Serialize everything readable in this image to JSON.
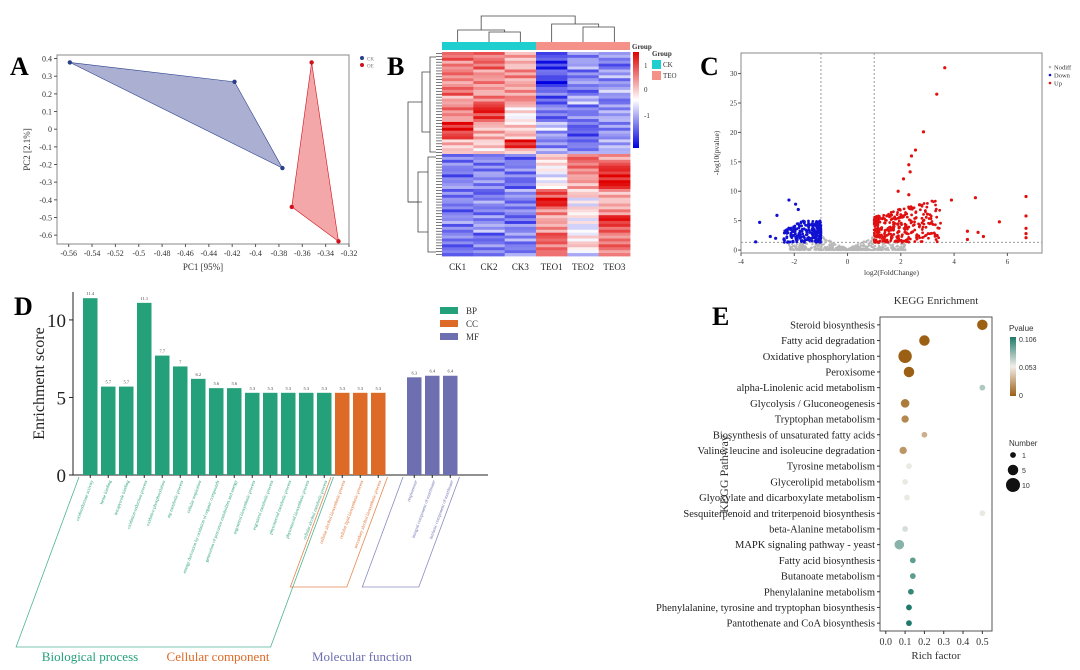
{
  "panels": {
    "A": "A",
    "B": "B",
    "C": "C",
    "D": "D",
    "E": "E"
  },
  "chart_data": [
    {
      "id": "A",
      "type": "scatter",
      "title": "",
      "xlabel": "PC1 [95%]",
      "ylabel": "PC2 [2.1%]",
      "xlim": [
        -0.57,
        -0.32
      ],
      "ylim": [
        -0.65,
        0.42
      ],
      "xticks": [
        -0.56,
        -0.54,
        -0.52,
        -0.5,
        -0.48,
        -0.46,
        -0.44,
        -0.42,
        -0.4,
        -0.38,
        -0.36,
        -0.34,
        -0.32
      ],
      "yticks": [
        0.4,
        0.3,
        0.2,
        0.1,
        0.0,
        -0.1,
        -0.2,
        -0.3,
        -0.4,
        -0.5,
        -0.6
      ],
      "legend": [
        {
          "name": "CK",
          "color": "#2b3f8c"
        },
        {
          "name": "OE",
          "color": "#d0101a"
        }
      ],
      "legend_position": "top-right",
      "series": [
        {
          "name": "CK",
          "color": "#2b3f8c",
          "fill": "#8f96c4",
          "points": [
            [
              -0.559,
              0.378
            ],
            [
              -0.418,
              0.268
            ],
            [
              -0.377,
              -0.22
            ]
          ]
        },
        {
          "name": "OE",
          "color": "#d0101a",
          "fill": "#f08a8c",
          "points": [
            [
              -0.352,
              0.378
            ],
            [
              -0.369,
              -0.44
            ],
            [
              -0.329,
              -0.635
            ]
          ]
        }
      ]
    },
    {
      "id": "B",
      "type": "heatmap",
      "columns": [
        "CK1",
        "CK2",
        "CK3",
        "TEO1",
        "TEO2",
        "TEO3"
      ],
      "groups": [
        {
          "name": "CK",
          "color": "#1fcfcf"
        },
        {
          "name": "TEO",
          "color": "#f4928a"
        }
      ],
      "annotation_title": "Group",
      "legend_title": "Group",
      "colorbar": {
        "min": -1.5,
        "max": 1.5,
        "ticks": [
          "1",
          "0",
          "-1"
        ],
        "low": "#0000e0",
        "mid": "#ffffff",
        "high": "#e00000"
      },
      "row_pattern": [
        [
          0.9,
          0.8,
          0.5,
          -1.0,
          -0.7,
          -0.6
        ],
        [
          0.7,
          0.9,
          0.4,
          -1.2,
          -0.5,
          -0.9
        ],
        [
          0.8,
          0.6,
          0.7,
          -0.9,
          -0.8,
          -0.5
        ],
        [
          0.6,
          0.7,
          0.5,
          -1.3,
          -0.6,
          -0.7
        ],
        [
          0.9,
          0.5,
          0.6,
          -0.8,
          -0.9,
          -0.4
        ],
        [
          0.5,
          0.8,
          0.7,
          -1.0,
          -0.4,
          -0.8
        ],
        [
          0.8,
          1.3,
          0.2,
          -0.7,
          -0.8,
          -0.6
        ],
        [
          0.6,
          1.1,
          0.0,
          -0.9,
          -0.7,
          -0.5
        ],
        [
          1.3,
          0.4,
          0.3,
          -0.3,
          -0.9,
          -0.7
        ],
        [
          1.1,
          0.5,
          0.4,
          -0.6,
          -1.0,
          -0.6
        ],
        [
          0.4,
          0.3,
          1.3,
          -0.7,
          -0.8,
          -0.5
        ],
        [
          0.3,
          0.2,
          0.4,
          -0.5,
          -0.7,
          -0.4
        ],
        [
          -0.8,
          -0.7,
          -0.9,
          0.3,
          0.9,
          0.6
        ],
        [
          -0.7,
          -0.8,
          -0.7,
          0.1,
          0.8,
          1.2
        ],
        [
          -0.9,
          -0.6,
          -0.8,
          -0.2,
          0.6,
          1.3
        ],
        [
          -0.6,
          -0.7,
          -0.9,
          0.0,
          0.5,
          1.4
        ],
        [
          -0.8,
          -0.9,
          -0.6,
          1.0,
          0.3,
          0.5
        ],
        [
          -0.7,
          -0.6,
          -0.8,
          1.4,
          -0.1,
          0.4
        ],
        [
          -0.9,
          -0.8,
          -0.7,
          0.7,
          0.2,
          0.6
        ],
        [
          -0.6,
          -0.7,
          -0.9,
          0.5,
          0.0,
          1.3
        ],
        [
          -0.8,
          -0.5,
          -0.7,
          0.6,
          -0.2,
          1.0
        ],
        [
          -0.7,
          -0.9,
          -0.6,
          1.0,
          0.1,
          0.7
        ],
        [
          -0.9,
          -0.7,
          -0.8,
          0.8,
          0.3,
          0.9
        ],
        [
          -0.8,
          -0.8,
          -0.7,
          0.9,
          -0.3,
          0.6
        ]
      ]
    },
    {
      "id": "C",
      "type": "scatter",
      "title": "",
      "xlabel": "log2(FoldChange)",
      "ylabel": "-log10(pvalue)",
      "xlim": [
        -4,
        7.3
      ],
      "ylim": [
        -0.5,
        33.5
      ],
      "xticks": [
        -4,
        -2,
        0,
        2,
        4,
        6
      ],
      "yticks": [
        0,
        5,
        10,
        15,
        20,
        25,
        30
      ],
      "thresholds": {
        "fc": [
          -1,
          1
        ],
        "p": 1.3
      },
      "legend": [
        {
          "name": "Nodiff",
          "color": "#b8b8b8"
        },
        {
          "name": "Down",
          "color": "#1010d0"
        },
        {
          "name": "Up",
          "color": "#e01010"
        }
      ],
      "legend_position": "top-right",
      "highlight_points": {
        "Up": [
          [
            3.65,
            31
          ],
          [
            3.35,
            26.5
          ],
          [
            2.85,
            20.1
          ],
          [
            2.55,
            17
          ],
          [
            2.4,
            16
          ],
          [
            2.3,
            14.5
          ],
          [
            2.35,
            13.3
          ],
          [
            2.1,
            12.1
          ],
          [
            1.9,
            10
          ],
          [
            2.3,
            9.4
          ],
          [
            6.7,
            9.1
          ],
          [
            4.8,
            8.9
          ],
          [
            3.9,
            8.5
          ],
          [
            2.7,
            7.7
          ],
          [
            3.0,
            6.1
          ],
          [
            6.7,
            5.8
          ],
          [
            5.7,
            4.8
          ],
          [
            6.7,
            3.7
          ],
          [
            4.5,
            3.2
          ],
          [
            4.9,
            3.0
          ],
          [
            5.1,
            2.3
          ],
          [
            6.7,
            2.8
          ],
          [
            6.7,
            2.1
          ],
          [
            4.5,
            1.8
          ]
        ],
        "Down": [
          [
            -2.2,
            8.5
          ],
          [
            -1.95,
            7.8
          ],
          [
            -1.85,
            6.9
          ],
          [
            -2.65,
            5.9
          ],
          [
            -3.3,
            4.7
          ],
          [
            -2.9,
            2.3
          ],
          [
            -3.45,
            1.4
          ],
          [
            -2.7,
            2.0
          ]
        ]
      }
    },
    {
      "id": "D",
      "type": "bar",
      "title": "",
      "xlabel": "",
      "ylabel": "Enrichment score",
      "ylim": [
        0,
        11.8
      ],
      "yticks": [
        0,
        5,
        10
      ],
      "legend": [
        {
          "name": "BP",
          "color": "#24a07a"
        },
        {
          "name": "CC",
          "color": "#dd6a26"
        },
        {
          "name": "MF",
          "color": "#6d6fb1"
        }
      ],
      "legend_position": "top-right",
      "groups": [
        {
          "name": "Biological process",
          "color": "#24a07a",
          "categories": [
            "oxidoreductase activity",
            "heme binding",
            "tetrapyrrole binding",
            "oxidation-reduction process",
            "oxidative phosphorylation",
            "atp metabolic process",
            "cellular respiration",
            "energy derivation by oxidation of organic compounds",
            "generation of precursor metabolites and energy",
            "ergosterol biosynthetic process",
            "ergosterol metabolic process",
            "phytosteroid metabolic process",
            "phytosteroid biosynthetic process",
            "cellular alcohol metabolic process"
          ],
          "values": [
            11.4,
            5.7,
            5.7,
            11.1,
            7.7,
            7.0,
            6.2,
            5.6,
            5.6,
            5.3,
            5.3,
            5.3,
            5.3,
            5.3
          ]
        },
        {
          "name": "Cellular component",
          "color": "#dd6a26",
          "categories": [
            "cellular alcohol biosynthetic process",
            "cellular lipid biosynthetic process",
            "secondary alcohol biosynthetic process"
          ],
          "values": [
            5.3,
            5.3,
            5.3
          ]
        },
        {
          "name": "Molecular function",
          "color": "#6d6fb1",
          "categories": [
            "respirasome",
            "integral component of membrane",
            "intrinsic component of membrane"
          ],
          "values": [
            6.3,
            6.4,
            6.4
          ]
        }
      ]
    },
    {
      "id": "E",
      "type": "scatter",
      "title": "KEGG Enrichment",
      "xlabel": "Rich factor",
      "ylabel": "KEGG Pathway",
      "xlim": [
        -0.03,
        0.55
      ],
      "xticks": [
        "0.0",
        "0.1",
        "0.2",
        "0.3",
        "0.4",
        "0.5"
      ],
      "xtick_values": [
        0,
        0.1,
        0.2,
        0.3,
        0.4,
        0.5
      ],
      "color_legend": {
        "title": "Pvalue",
        "ticks": [
          "0.106",
          "0.053",
          "0"
        ],
        "low": "#9b6014",
        "mid": "#f2eee8",
        "high": "#1f7a6a",
        "max": 0.106
      },
      "size_legend": {
        "title": "Number",
        "values": [
          1,
          5,
          10
        ],
        "labels": [
          "1",
          "5",
          "10"
        ]
      },
      "pathways": [
        {
          "name": "Steroid biosynthesis",
          "rich": 0.5,
          "pvalue": 0.0,
          "number": 5
        },
        {
          "name": "Fatty acid degradation",
          "rich": 0.2,
          "pvalue": 0.0,
          "number": 5
        },
        {
          "name": "Oxidative phosphorylation",
          "rich": 0.1,
          "pvalue": 0.0,
          "number": 9
        },
        {
          "name": "Peroxisome",
          "rich": 0.12,
          "pvalue": 0.0,
          "number": 5
        },
        {
          "name": "alpha-Linolenic acid metabolism",
          "rich": 0.5,
          "pvalue": 0.07,
          "number": 1
        },
        {
          "name": "Glycolysis / Gluconeogenesis",
          "rich": 0.1,
          "pvalue": 0.01,
          "number": 3
        },
        {
          "name": "Tryptophan metabolism",
          "rich": 0.1,
          "pvalue": 0.015,
          "number": 2
        },
        {
          "name": "Biosynthesis of unsaturated fatty acids",
          "rich": 0.2,
          "pvalue": 0.03,
          "number": 1
        },
        {
          "name": "Valine, leucine and isoleucine degradation",
          "rich": 0.09,
          "pvalue": 0.02,
          "number": 2
        },
        {
          "name": "Tyrosine metabolism",
          "rich": 0.12,
          "pvalue": 0.055,
          "number": 1
        },
        {
          "name": "Glycerolipid metabolism",
          "rich": 0.1,
          "pvalue": 0.055,
          "number": 1
        },
        {
          "name": "Glyoxylate and dicarboxylate metabolism",
          "rich": 0.11,
          "pvalue": 0.055,
          "number": 1
        },
        {
          "name": "Sesquiterpenoid and triterpenoid biosynthesis",
          "rich": 0.5,
          "pvalue": 0.055,
          "number": 1
        },
        {
          "name": "beta-Alanine metabolism",
          "rich": 0.1,
          "pvalue": 0.06,
          "number": 1
        },
        {
          "name": "MAPK signaling pathway - yeast",
          "rich": 0.07,
          "pvalue": 0.08,
          "number": 4
        },
        {
          "name": "Fatty acid biosynthesis",
          "rich": 0.14,
          "pvalue": 0.09,
          "number": 1
        },
        {
          "name": "Butanoate metabolism",
          "rich": 0.14,
          "pvalue": 0.09,
          "number": 1
        },
        {
          "name": "Phenylalanine metabolism",
          "rich": 0.13,
          "pvalue": 0.1,
          "number": 1
        },
        {
          "name": "Phenylalanine, tyrosine and tryptophan biosynthesis",
          "rich": 0.12,
          "pvalue": 0.106,
          "number": 1
        },
        {
          "name": "Pantothenate and CoA biosynthesis",
          "rich": 0.12,
          "pvalue": 0.106,
          "number": 1
        }
      ]
    }
  ]
}
